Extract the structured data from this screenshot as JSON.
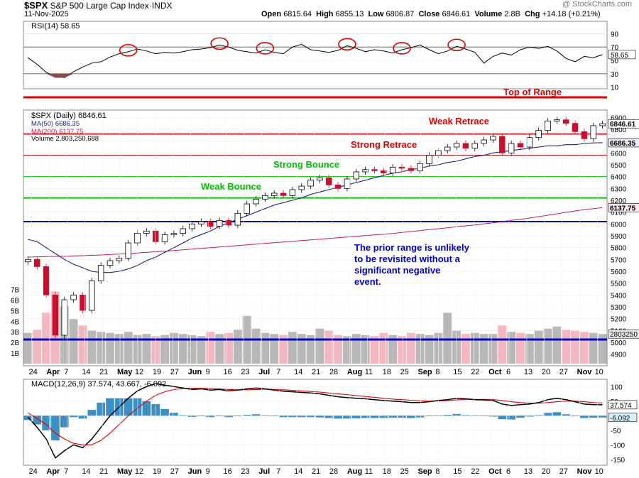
{
  "header": {
    "symbol": "$SPX",
    "name": "S&P 500 Large Cap Index",
    "exchange": "INDX",
    "date": "11-Nov-2025",
    "watermark": "@ StockCharts.com",
    "quote": {
      "open_label": "Open",
      "open": "6815.64",
      "high_label": "High",
      "high": "6855.13",
      "low_label": "Low",
      "low": "6806.87",
      "close_label": "Close",
      "close": "6846.61",
      "volume_label": "Volume",
      "volume": "2.8B",
      "chg_label": "Chg",
      "chg": "+14.18 (+0.21%)"
    }
  },
  "colors": {
    "up": "#000000",
    "down": "#c8102e",
    "ma50": "#1a237e",
    "ma200": "#c2185b",
    "red_line": "#e00000",
    "green_line": "#00c000",
    "blue_line": "#0000c8",
    "annotation_blue": "#0000c0",
    "rsi_fill": "#2e7d32",
    "macd_hist": "#3b8fc4"
  },
  "rsi_panel": {
    "legend": "RSI(14) 58.65",
    "value_tag": "58.65",
    "ticks": [
      "90",
      "70",
      "50",
      "30",
      "10"
    ],
    "values": [
      54,
      44,
      32,
      26,
      24,
      33,
      40,
      46,
      48,
      55,
      60,
      63,
      67,
      64,
      60,
      62,
      61,
      63,
      66,
      67,
      69,
      73,
      70,
      65,
      63,
      61,
      66,
      62,
      60,
      70,
      74,
      66,
      64,
      62,
      65,
      72,
      68,
      63,
      66,
      64,
      61,
      66,
      69,
      73,
      66,
      60,
      64,
      71,
      67,
      62,
      46,
      56,
      61,
      58,
      66,
      70,
      68,
      71,
      64,
      53,
      48,
      56,
      54,
      58.65
    ],
    "circled_at_indices": [
      11,
      21,
      26,
      35,
      41,
      47
    ]
  },
  "price_panel": {
    "legend_title": "$SPX (Daily) 6846.61",
    "legend_ma50": "MA(50) 6686.35",
    "legend_ma200": "MA(200) 6137.75",
    "legend_volume": "Volume 2,803,250,688",
    "price_ticks": [
      "6900",
      "6800",
      "6700",
      "6600",
      "6500",
      "6400",
      "6300",
      "6200",
      "6100",
      "6000",
      "5900",
      "5800",
      "5700",
      "5600",
      "5500",
      "5400",
      "5300",
      "5200",
      "5100",
      "5000",
      "4900"
    ],
    "volume_ticks": [
      "7B",
      "6B",
      "5B",
      "4B",
      "3B",
      "2B",
      "1B"
    ],
    "tag_close": "6846.61",
    "tag_ma50": "6686.35",
    "tag_ma200": "6137.75",
    "tag_volume": "2803250",
    "lines": {
      "top_of_range": 7000,
      "weak_retrace": 6760,
      "strong_retrace": 6580,
      "strong_bounce": 6400,
      "weak_bounce": 6220,
      "blue_support": 6020
    },
    "annotations": {
      "top_of_range": "Top of Range",
      "weak_retrace": "Weak Retrace",
      "strong_retrace": "Strong Retrace",
      "strong_bounce": "Strong Bounce",
      "weak_bounce": "Weak Bounce",
      "note": [
        "The prior range is unlikely",
        "to be revisited without a",
        "significant negative",
        "event."
      ]
    }
  },
  "macd_panel": {
    "legend": "MACD(12,26,9) 37.574, 43.667, -6.092",
    "legend_values": "37.574, 43.667, -6.092",
    "ticks": [
      "100",
      "50",
      "0",
      "-50",
      "-100",
      "-150"
    ],
    "tag_macd": "37.574",
    "tag_hist": "-6.092"
  },
  "x_axis": {
    "labels": [
      {
        "t": "24",
        "b": false
      },
      {
        "t": "Apr",
        "b": true
      },
      {
        "t": "7",
        "b": false
      },
      {
        "t": "14",
        "b": false
      },
      {
        "t": "21",
        "b": false
      },
      {
        "t": "May",
        "b": true
      },
      {
        "t": "12",
        "b": false
      },
      {
        "t": "19",
        "b": false
      },
      {
        "t": "27",
        "b": false
      },
      {
        "t": "Jun",
        "b": true
      },
      {
        "t": "9",
        "b": false
      },
      {
        "t": "16",
        "b": false
      },
      {
        "t": "23",
        "b": false
      },
      {
        "t": "Jul",
        "b": true
      },
      {
        "t": "7",
        "b": false
      },
      {
        "t": "14",
        "b": false
      },
      {
        "t": "21",
        "b": false
      },
      {
        "t": "28",
        "b": false
      },
      {
        "t": "Aug",
        "b": true
      },
      {
        "t": "11",
        "b": false
      },
      {
        "t": "18",
        "b": false
      },
      {
        "t": "25",
        "b": false
      },
      {
        "t": "Sep",
        "b": true
      },
      {
        "t": "8",
        "b": false
      },
      {
        "t": "15",
        "b": false
      },
      {
        "t": "22",
        "b": false
      },
      {
        "t": "Oct",
        "b": true
      },
      {
        "t": "6",
        "b": false
      },
      {
        "t": "13",
        "b": false
      },
      {
        "t": "20",
        "b": false
      },
      {
        "t": "27",
        "b": false
      },
      {
        "t": "Nov",
        "b": true
      },
      {
        "t": "10",
        "b": false
      }
    ]
  },
  "chart_data": {
    "type": "candlestick",
    "title": "$SPX (Daily) 6846.61",
    "x": [
      "Mar 24",
      "Mar 28",
      "Apr 3",
      "Apr 7",
      "Apr 10",
      "Apr 14",
      "Apr 21",
      "Apr 25",
      "May 1",
      "May 5",
      "May 9",
      "May 12",
      "May 16",
      "May 19",
      "May 23",
      "May 27",
      "May 30",
      "Jun 2",
      "Jun 6",
      "Jun 9",
      "Jun 13",
      "Jun 16",
      "Jun 20",
      "Jun 23",
      "Jun 27",
      "Jul 1",
      "Jul 7",
      "Jul 11",
      "Jul 14",
      "Jul 18",
      "Jul 21",
      "Jul 25",
      "Jul 28",
      "Aug 1",
      "Aug 4",
      "Aug 8",
      "Aug 11",
      "Aug 15",
      "Aug 18",
      "Aug 22",
      "Aug 25",
      "Aug 29",
      "Sep 2",
      "Sep 8",
      "Sep 12",
      "Sep 15",
      "Sep 19",
      "Sep 22",
      "Sep 26",
      "Sep 30",
      "Oct 3",
      "Oct 6",
      "Oct 10",
      "Oct 13",
      "Oct 17",
      "Oct 20",
      "Oct 24",
      "Oct 27",
      "Oct 29",
      "Nov 3",
      "Nov 5",
      "Nov 7",
      "Nov 10",
      "Nov 11"
    ],
    "close": [
      5700,
      5640,
      5400,
      5060,
      5360,
      5400,
      5270,
      5520,
      5650,
      5690,
      5710,
      5840,
      5920,
      5940,
      5850,
      5910,
      5920,
      5960,
      6000,
      6020,
      5980,
      6030,
      5990,
      6090,
      6170,
      6210,
      6240,
      6260,
      6240,
      6290,
      6320,
      6370,
      6390,
      6330,
      6300,
      6380,
      6440,
      6460,
      6450,
      6430,
      6480,
      6470,
      6450,
      6510,
      6580,
      6620,
      6650,
      6680,
      6640,
      6680,
      6710,
      6740,
      6600,
      6680,
      6650,
      6730,
      6790,
      6870,
      6880,
      6850,
      6780,
      6720,
      6830,
      6846.61
    ],
    "ma50": [
      5870,
      5850,
      5800,
      5750,
      5700,
      5660,
      5630,
      5600,
      5590,
      5590,
      5600,
      5620,
      5650,
      5690,
      5720,
      5760,
      5800,
      5840,
      5880,
      5910,
      5940,
      5980,
      6010,
      6040,
      6070,
      6100,
      6130,
      6160,
      6180,
      6200,
      6220,
      6250,
      6270,
      6290,
      6310,
      6330,
      6350,
      6370,
      6390,
      6410,
      6430,
      6440,
      6460,
      6470,
      6490,
      6500,
      6520,
      6530,
      6550,
      6570,
      6580,
      6600,
      6610,
      6620,
      6630,
      6640,
      6650,
      6660,
      6660,
      6670,
      6670,
      6680,
      6685,
      6686.35
    ],
    "ma200": [
      5720,
      5722,
      5724,
      5726,
      5728,
      5730,
      5732,
      5735,
      5738,
      5742,
      5746,
      5750,
      5755,
      5760,
      5765,
      5770,
      5776,
      5782,
      5788,
      5794,
      5800,
      5806,
      5812,
      5818,
      5824,
      5830,
      5836,
      5842,
      5848,
      5854,
      5860,
      5866,
      5872,
      5878,
      5884,
      5890,
      5896,
      5902,
      5908,
      5914,
      5920,
      5928,
      5936,
      5944,
      5952,
      5960,
      5968,
      5976,
      5984,
      5992,
      6000,
      6010,
      6020,
      6030,
      6040,
      6050,
      6062,
      6074,
      6086,
      6098,
      6110,
      6120,
      6130,
      6137.75
    ],
    "volume_billions": [
      2.9,
      3.2,
      4.8,
      6.8,
      5.4,
      4.2,
      3.6,
      3.1,
      3.0,
      2.9,
      2.8,
      3.0,
      2.7,
      2.8,
      2.6,
      2.7,
      2.9,
      2.8,
      2.7,
      2.6,
      3.0,
      2.8,
      2.9,
      3.2,
      4.5,
      3.3,
      2.9,
      2.8,
      2.7,
      3.0,
      2.8,
      2.7,
      3.3,
      3.1,
      2.7,
      2.6,
      2.8,
      2.7,
      2.6,
      2.9,
      2.7,
      2.6,
      2.9,
      2.8,
      2.7,
      2.9,
      4.8,
      3.1,
      2.8,
      2.9,
      2.8,
      2.8,
      3.6,
      3.0,
      2.9,
      2.8,
      3.1,
      3.3,
      3.5,
      3.2,
      3.1,
      3.0,
      2.9,
      2.8
    ],
    "macd": [
      -5,
      -40,
      -80,
      -145,
      -120,
      -100,
      -110,
      -80,
      -40,
      0,
      30,
      60,
      85,
      100,
      110,
      105,
      100,
      95,
      90,
      92,
      88,
      90,
      85,
      88,
      92,
      95,
      92,
      88,
      84,
      82,
      80,
      78,
      75,
      70,
      65,
      62,
      60,
      58,
      55,
      52,
      50,
      48,
      45,
      45,
      48,
      52,
      55,
      60,
      58,
      55,
      54,
      52,
      40,
      35,
      38,
      40,
      45,
      55,
      60,
      55,
      48,
      40,
      38,
      37.574
    ],
    "signal": [
      10,
      -10,
      -30,
      -60,
      -80,
      -95,
      -100,
      -100,
      -85,
      -60,
      -30,
      0,
      25,
      50,
      70,
      82,
      90,
      93,
      94,
      94,
      93,
      92,
      90,
      89,
      89,
      90,
      91,
      90,
      89,
      87,
      85,
      83,
      81,
      78,
      75,
      72,
      69,
      66,
      63,
      60,
      57,
      55,
      53,
      51,
      50,
      51,
      52,
      54,
      56,
      56,
      56,
      55,
      52,
      48,
      45,
      43,
      43,
      45,
      48,
      50,
      50,
      48,
      45,
      43.667
    ],
    "ylabel": "",
    "xlabel": ""
  }
}
